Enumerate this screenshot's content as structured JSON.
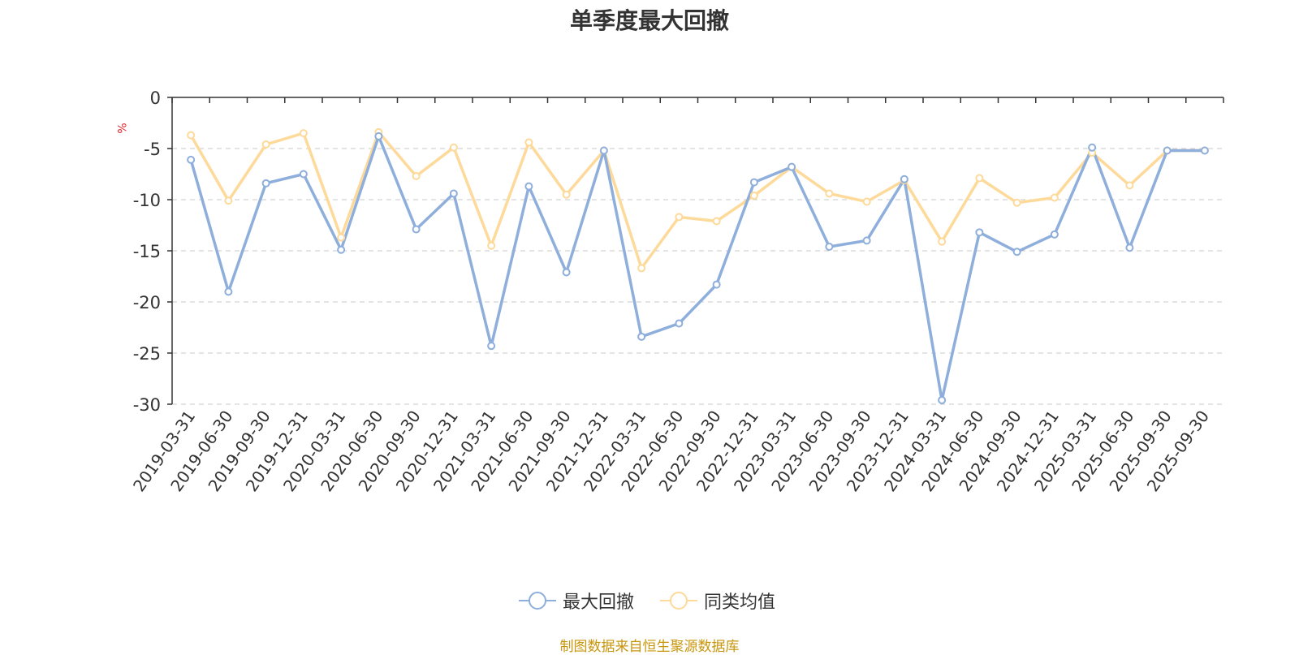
{
  "chart_data": {
    "type": "line",
    "title": "单季度最大回撤",
    "ylabel": "%",
    "ylim": [
      -30,
      0
    ],
    "yticks": [
      0,
      -5,
      -10,
      -15,
      -20,
      -25,
      -30
    ],
    "grid": true,
    "legend_position": "bottom",
    "categories": [
      "2019-03-31",
      "2019-06-30",
      "2019-09-30",
      "2019-12-31",
      "2020-03-31",
      "2020-06-30",
      "2020-09-30",
      "2020-12-31",
      "2021-03-31",
      "2021-06-30",
      "2021-09-30",
      "2021-12-31",
      "2022-03-31",
      "2022-06-30",
      "2022-09-30",
      "2022-12-31",
      "2023-03-31",
      "2023-06-30",
      "2023-09-30",
      "2023-12-31",
      "2024-03-31",
      "2024-06-30",
      "2024-09-30",
      "2024-12-31",
      "2025-03-31",
      "2025-06-30",
      "2025-09-30",
      "2025-09-30"
    ],
    "series": [
      {
        "name": "最大回撤",
        "color": "#8eaedc",
        "values": [
          -6.1,
          -19.0,
          -8.4,
          -7.5,
          -14.9,
          -3.8,
          -12.9,
          -9.4,
          -24.3,
          -8.7,
          -17.1,
          -5.2,
          -23.4,
          -22.1,
          -18.3,
          -8.3,
          -6.8,
          -14.6,
          -14.0,
          -8.0,
          -29.6,
          -13.2,
          -15.1,
          -13.4,
          -4.9,
          -14.7,
          -5.2,
          -5.2
        ]
      },
      {
        "name": "同类均值",
        "color": "#fdd99a",
        "values": [
          -3.7,
          -10.1,
          -4.6,
          -3.5,
          -13.7,
          -3.4,
          -7.7,
          -4.9,
          -14.5,
          -4.4,
          -9.5,
          -5.2,
          -16.7,
          -11.7,
          -12.1,
          -9.6,
          -6.8,
          -9.4,
          -10.2,
          -8.1,
          -14.1,
          -7.9,
          -10.3,
          -9.8,
          -5.4,
          -8.6,
          -5.2,
          -5.2
        ]
      }
    ]
  },
  "source_note": "制图数据来自恒生聚源数据库"
}
